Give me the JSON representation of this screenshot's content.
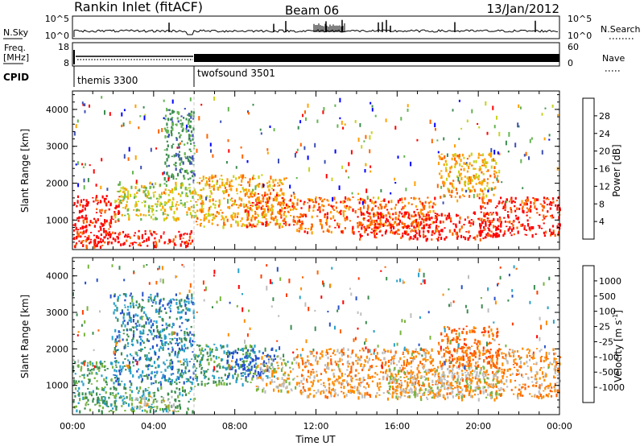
{
  "header": {
    "title": "Rankin Inlet (fitACF)",
    "beam": "Beam 06",
    "date": "13/Jan/2012"
  },
  "nsky_panel": {
    "left_label": "N.Sky",
    "left_ticks": [
      "10^5",
      "10^0"
    ],
    "right_label": "N.Search",
    "right_ticks": [
      "10^5",
      "10^0"
    ]
  },
  "freq_panel": {
    "left_label_top": "Freq.",
    "left_label_unit": "[MHz]",
    "left_ticks": [
      "18",
      "8"
    ],
    "right_label": "Nave",
    "right_ticks": [
      "60",
      "0"
    ]
  },
  "cpid": {
    "label": "CPID",
    "segments": [
      {
        "name": "themis 3300",
        "start_h": 0,
        "end_h": 6
      },
      {
        "name": "twofsound 3501",
        "start_h": 6,
        "end_h": 24
      }
    ]
  },
  "colors": {
    "power_scale": [
      "#0000ff",
      "#3c50b4",
      "#3c8c50",
      "#64b450",
      "#c8d21e",
      "#ffa000",
      "#ff6400",
      "#ff0000"
    ],
    "velocity_scale": [
      "#2850c8",
      "#28a0c8",
      "#3c8c50",
      "#78b43c",
      "#bebebe",
      "#ff8c00",
      "#ff6400",
      "#ff3c00",
      "#ff0000"
    ]
  },
  "chart_data": [
    {
      "type": "heatmap",
      "name": "power",
      "ylabel": "Slant Range [km]",
      "ylim": [
        200,
        4500
      ],
      "xlim": [
        0,
        24
      ],
      "yticks": [
        1000,
        2000,
        3000,
        4000
      ],
      "xticks_minor_every_h": 1,
      "colorbar": {
        "label": "Power [dB]",
        "range": [
          0,
          32
        ],
        "tick_labels": [
          "4",
          "8",
          "12",
          "16",
          "20",
          "24",
          "28"
        ]
      },
      "scatter_regions": [
        {
          "t0": 0.0,
          "t1": 2.3,
          "r0": 350,
          "r1": 1650,
          "level": 7
        },
        {
          "t0": 0.0,
          "t1": 6.0,
          "r0": 250,
          "r1": 700,
          "level": 7
        },
        {
          "t0": 2.0,
          "t1": 6.0,
          "r0": 1000,
          "r1": 2000,
          "level": 4
        },
        {
          "t0": 4.5,
          "t1": 6.0,
          "r0": 2000,
          "r1": 4000,
          "level": 2
        },
        {
          "t0": 6.0,
          "t1": 10.5,
          "r0": 800,
          "r1": 2200,
          "level": 5
        },
        {
          "t0": 8.5,
          "t1": 11.0,
          "r0": 800,
          "r1": 1700,
          "level": 6
        },
        {
          "t0": 11.0,
          "t1": 18.0,
          "r0": 650,
          "r1": 1600,
          "level": 6
        },
        {
          "t0": 14.0,
          "t1": 21.0,
          "r0": 450,
          "r1": 1200,
          "level": 7
        },
        {
          "t0": 18.0,
          "t1": 21.0,
          "r0": 1600,
          "r1": 2800,
          "level": 5
        },
        {
          "t0": 20.0,
          "t1": 24.0,
          "r0": 550,
          "r1": 1600,
          "level": 7
        }
      ]
    },
    {
      "type": "heatmap",
      "name": "velocity",
      "ylabel": "Slant Range [km]",
      "xlabel": "Time UT",
      "ylim": [
        200,
        4500
      ],
      "xlim": [
        0,
        24
      ],
      "yticks": [
        1000,
        2000,
        3000,
        4000
      ],
      "xtick_labels": [
        "00:00",
        "04:00",
        "08:00",
        "12:00",
        "16:00",
        "20:00",
        "00:00"
      ],
      "xtick_hours": [
        0,
        4,
        8,
        12,
        16,
        20,
        24
      ],
      "colorbar": {
        "label": "Velocity [m s",
        "label_sup": "-1",
        "label_end": "]",
        "tick_labels": [
          "1000",
          "500",
          "100",
          "25",
          "-25",
          "-100",
          "-500",
          "-1000"
        ]
      },
      "scatter_regions": [
        {
          "t0": 0.0,
          "t1": 2.3,
          "r0": 1000,
          "r1": 1650,
          "level": 2
        },
        {
          "t0": 0.0,
          "t1": 6.0,
          "r0": 250,
          "r1": 950,
          "level": 2
        },
        {
          "t0": 3.0,
          "t1": 5.0,
          "r0": 250,
          "r1": 700,
          "level": 4
        },
        {
          "t0": 2.0,
          "t1": 6.0,
          "r0": 1000,
          "r1": 3500,
          "level": 1
        },
        {
          "t0": 6.0,
          "t1": 9.0,
          "r0": 1000,
          "r1": 2100,
          "level": 2
        },
        {
          "t0": 7.5,
          "t1": 10.0,
          "r0": 1200,
          "r1": 2000,
          "level": 0
        },
        {
          "t0": 9.0,
          "t1": 11.0,
          "r0": 800,
          "r1": 1800,
          "level": 4
        },
        {
          "t0": 11.0,
          "t1": 24.0,
          "r0": 650,
          "r1": 2000,
          "level": 5
        },
        {
          "t0": 15.5,
          "t1": 21.0,
          "r0": 600,
          "r1": 1500,
          "level": 4
        },
        {
          "t0": 18.0,
          "t1": 21.0,
          "r0": 1500,
          "r1": 2600,
          "level": 6
        }
      ]
    }
  ]
}
